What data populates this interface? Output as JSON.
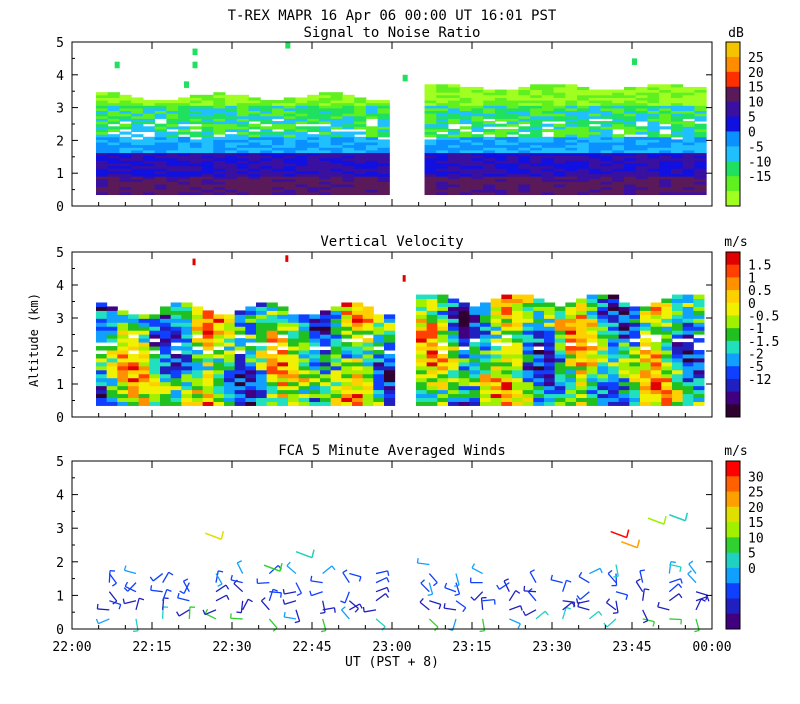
{
  "chart_data": {
    "type": "heatmap",
    "title": "T-REX  MAPR 16 Apr 06  00:00 UT  16:01  PST",
    "xlabel": "UT  (PST + 8)",
    "ylabel": "Altitude (km)",
    "x_ticks": [
      "22:00",
      "22:15",
      "22:30",
      "22:45",
      "23:00",
      "23:15",
      "23:30",
      "23:45",
      "00:00"
    ],
    "y_ticks": [
      "0",
      "1",
      "2",
      "3",
      "4",
      "5"
    ],
    "xlim_minutes": [
      0,
      120
    ],
    "ylim_km": [
      0,
      5
    ],
    "data_gap_minutes": [
      59,
      64
    ],
    "panels": [
      {
        "id": "snr",
        "subtitle": "Signal to Noise Ratio",
        "type": "heatmap",
        "unit": "dB",
        "colorbar_labels": [
          "25",
          "20",
          "15",
          "10",
          "5",
          "0",
          "-5",
          "-10",
          "-15"
        ],
        "colors": [
          "#f5c400",
          "#ff8c00",
          "#ff3000",
          "#5a1a5a",
          "#3a10a0",
          "#1010e0",
          "#0a90ff",
          "#20c0ff",
          "#20e060",
          "#60f020",
          "#a0ff20"
        ],
        "approx_profile": [
          {
            "alt_range_km": [
              0.3,
              1.0
            ],
            "snr_db": 12
          },
          {
            "alt_range_km": [
              1.0,
              1.6
            ],
            "snr_db": 5
          },
          {
            "alt_range_km": [
              1.6,
              2.2
            ],
            "snr_db": -3
          },
          {
            "alt_range_km": [
              2.2,
              3.3
            ],
            "snr_db": -10
          },
          {
            "alt_range_km": [
              3.3,
              3.6
            ],
            "snr_db": -15
          }
        ]
      },
      {
        "id": "vv",
        "subtitle": "Vertical Velocity",
        "type": "heatmap",
        "unit": "m/s",
        "colorbar_labels": [
          "1.5",
          "1",
          "0.5",
          "0",
          "-0.5",
          "-1",
          "-1.5",
          "-2",
          "-5",
          "-12"
        ],
        "colors": [
          "#e00000",
          "#ff4000",
          "#ff9000",
          "#ffd000",
          "#f0f000",
          "#a0f000",
          "#20c020",
          "#20e0c0",
          "#10a0ff",
          "#1040ff",
          "#2020c0",
          "#400080",
          "#300030"
        ]
      },
      {
        "id": "winds",
        "subtitle": "FCA 5 Minute Averaged Winds",
        "type": "scatter",
        "unit": "m/s",
        "colorbar_labels": [
          "30",
          "25",
          "20",
          "15",
          "10",
          "5",
          "0"
        ],
        "colors": [
          "#ff0000",
          "#ff6000",
          "#ffa000",
          "#e0e000",
          "#a0f000",
          "#30d030",
          "#20d0c0",
          "#10a0ff",
          "#1040ff",
          "#2020c0",
          "#400080"
        ],
        "approx_speed_by_alt": [
          {
            "alt_km": 0.4,
            "speed_ms": 3
          },
          {
            "alt_km": 1.2,
            "speed_ms": 5
          },
          {
            "alt_km": 1.8,
            "speed_ms": 9
          },
          {
            "alt_km": 2.8,
            "speed_ms": 30
          },
          {
            "alt_km": 3.3,
            "speed_ms": 12
          }
        ]
      }
    ]
  }
}
